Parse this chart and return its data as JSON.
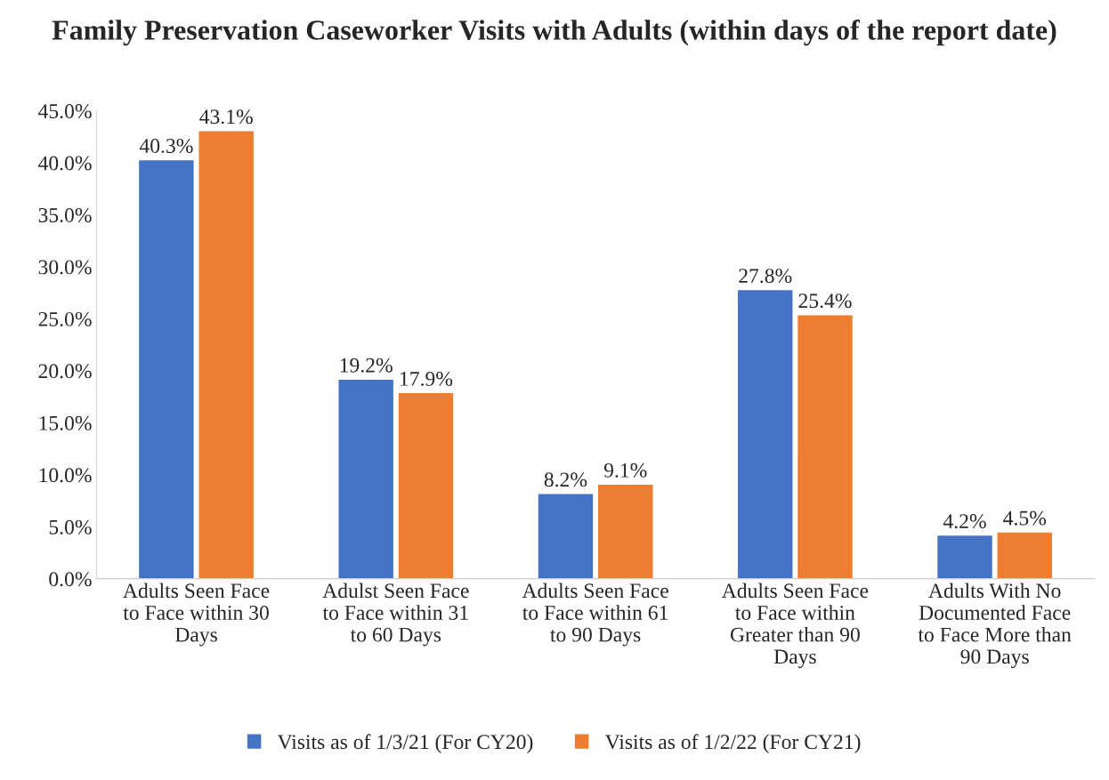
{
  "chart_data": {
    "type": "bar",
    "title": "Family Preservation Caseworker Visits with Adults (within days of the report date)",
    "categories": [
      "Adults Seen Face to Face within 30 Days",
      "Adulst Seen Face to Face within 31 to 60 Days",
      "Adults Seen Face to Face within 61 to 90 Days",
      "Adults Seen Face to Face within Greater than 90 Days",
      "Adults With No Documented Face to Face More than 90 Days"
    ],
    "series": [
      {
        "name": "Visits as of 1/3/21 (For CY20)",
        "color": "#4472c4",
        "values": [
          40.3,
          19.2,
          8.2,
          27.8,
          4.2
        ],
        "value_labels": [
          "40.3%",
          "19.2%",
          "8.2%",
          "27.8%",
          "4.2%"
        ]
      },
      {
        "name": "Visits as of 1/2/22 (For CY21)",
        "color": "#ed7d31",
        "values": [
          43.1,
          17.9,
          9.1,
          25.4,
          4.5
        ],
        "value_labels": [
          "43.1%",
          "17.9%",
          "9.1%",
          "25.4%",
          "4.5%"
        ]
      }
    ],
    "ylim": [
      0,
      45
    ],
    "yticks": [
      {
        "value": 0,
        "label": "0.0%"
      },
      {
        "value": 5,
        "label": "5.0%"
      },
      {
        "value": 10,
        "label": "10.0%"
      },
      {
        "value": 15,
        "label": "15.0%"
      },
      {
        "value": 20,
        "label": "20.0%"
      },
      {
        "value": 25,
        "label": "25.0%"
      },
      {
        "value": 30,
        "label": "30.0%"
      },
      {
        "value": 35,
        "label": "35.0%"
      },
      {
        "value": 40,
        "label": "40.0%"
      },
      {
        "value": 45,
        "label": "45.0%"
      }
    ],
    "grid": false,
    "legend": "bottom"
  }
}
